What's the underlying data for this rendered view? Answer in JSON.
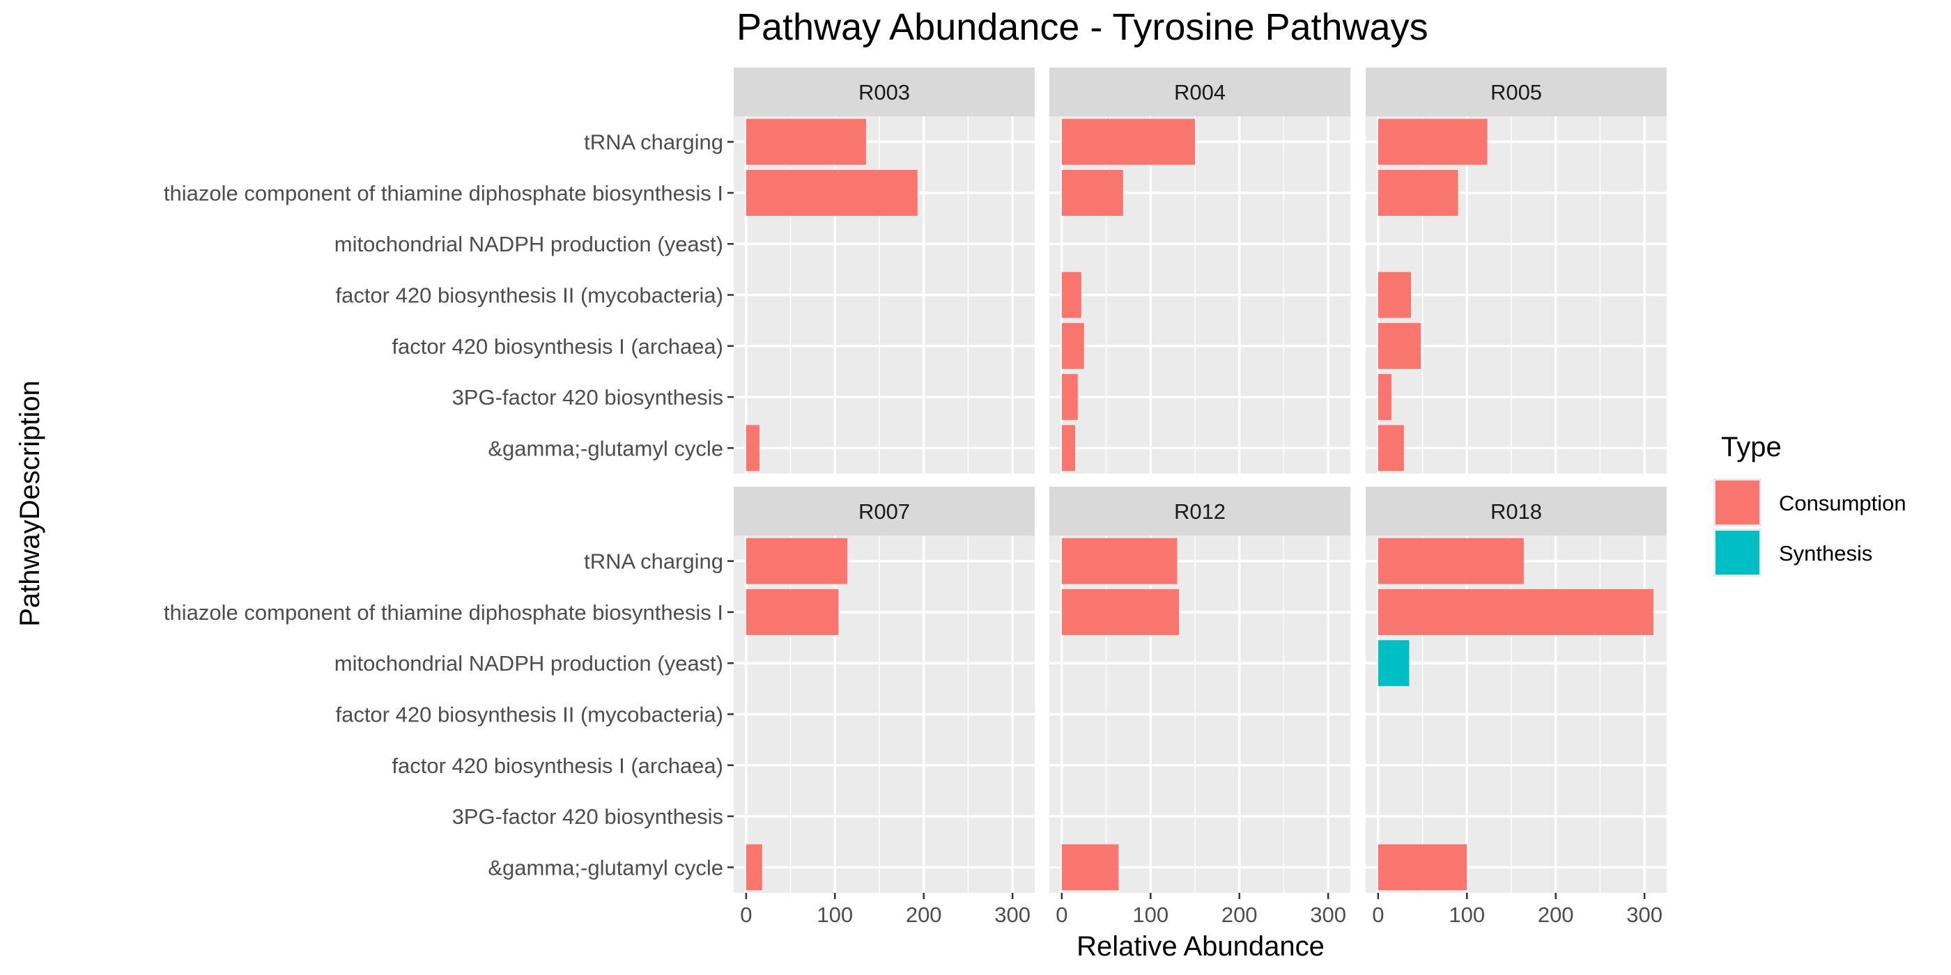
{
  "chart_data": {
    "type": "bar",
    "orientation": "horizontal",
    "title": "Pathway Abundance - Tyrosine Pathways",
    "xlabel": "Relative Abundance",
    "ylabel": "PathwayDescription",
    "xlim": [
      -14,
      325
    ],
    "x_ticks": [
      0,
      100,
      200,
      300
    ],
    "x_tick_labels": [
      "0",
      "100",
      "200",
      "300"
    ],
    "grid": true,
    "facet_layout": {
      "rows": 2,
      "cols": 3
    },
    "categories": [
      "tRNA charging",
      "thiazole component of thiamine diphosphate biosynthesis I",
      "mitochondrial NADPH production (yeast)",
      "factor 420 biosynthesis II (mycobacteria)",
      "factor 420 biosynthesis I (archaea)",
      "3PG-factor 420 biosynthesis",
      "&gamma;-glutamyl cycle"
    ],
    "legend": {
      "title": "Type",
      "position": "right",
      "entries": [
        {
          "name": "Consumption",
          "color": "#F8766D"
        },
        {
          "name": "Synthesis",
          "color": "#00BFC4"
        }
      ]
    },
    "facets": [
      {
        "name": "R003",
        "bars": [
          {
            "category": "tRNA charging",
            "value": 135,
            "type": "Consumption"
          },
          {
            "category": "thiazole component of thiamine diphosphate biosynthesis I",
            "value": 193,
            "type": "Consumption"
          },
          {
            "category": "&gamma;-glutamyl cycle",
            "value": 15,
            "type": "Consumption"
          }
        ]
      },
      {
        "name": "R004",
        "bars": [
          {
            "category": "tRNA charging",
            "value": 150,
            "type": "Consumption"
          },
          {
            "category": "thiazole component of thiamine diphosphate biosynthesis I",
            "value": 69,
            "type": "Consumption"
          },
          {
            "category": "factor 420 biosynthesis II (mycobacteria)",
            "value": 22,
            "type": "Consumption"
          },
          {
            "category": "factor 420 biosynthesis I (archaea)",
            "value": 25,
            "type": "Consumption"
          },
          {
            "category": "3PG-factor 420 biosynthesis",
            "value": 18,
            "type": "Consumption"
          },
          {
            "category": "&gamma;-glutamyl cycle",
            "value": 15,
            "type": "Consumption"
          }
        ]
      },
      {
        "name": "R005",
        "bars": [
          {
            "category": "tRNA charging",
            "value": 123,
            "type": "Consumption"
          },
          {
            "category": "thiazole component of thiamine diphosphate biosynthesis I",
            "value": 90,
            "type": "Consumption"
          },
          {
            "category": "factor 420 biosynthesis II (mycobacteria)",
            "value": 37,
            "type": "Consumption"
          },
          {
            "category": "factor 420 biosynthesis I (archaea)",
            "value": 48,
            "type": "Consumption"
          },
          {
            "category": "3PG-factor 420 biosynthesis",
            "value": 15,
            "type": "Consumption"
          },
          {
            "category": "&gamma;-glutamyl cycle",
            "value": 29,
            "type": "Consumption"
          }
        ]
      },
      {
        "name": "R007",
        "bars": [
          {
            "category": "tRNA charging",
            "value": 114,
            "type": "Consumption"
          },
          {
            "category": "thiazole component of thiamine diphosphate biosynthesis I",
            "value": 104,
            "type": "Consumption"
          },
          {
            "category": "&gamma;-glutamyl cycle",
            "value": 18,
            "type": "Consumption"
          }
        ]
      },
      {
        "name": "R012",
        "bars": [
          {
            "category": "tRNA charging",
            "value": 130,
            "type": "Consumption"
          },
          {
            "category": "thiazole component of thiamine diphosphate biosynthesis I",
            "value": 132,
            "type": "Consumption"
          },
          {
            "category": "&gamma;-glutamyl cycle",
            "value": 64,
            "type": "Consumption"
          }
        ]
      },
      {
        "name": "R018",
        "bars": [
          {
            "category": "tRNA charging",
            "value": 164,
            "type": "Consumption"
          },
          {
            "category": "thiazole component of thiamine diphosphate biosynthesis I",
            "value": 310,
            "type": "Consumption"
          },
          {
            "category": "mitochondrial NADPH production (yeast)",
            "value": 35,
            "type": "Synthesis"
          },
          {
            "category": "&gamma;-glutamyl cycle",
            "value": 100,
            "type": "Consumption"
          }
        ]
      }
    ]
  }
}
